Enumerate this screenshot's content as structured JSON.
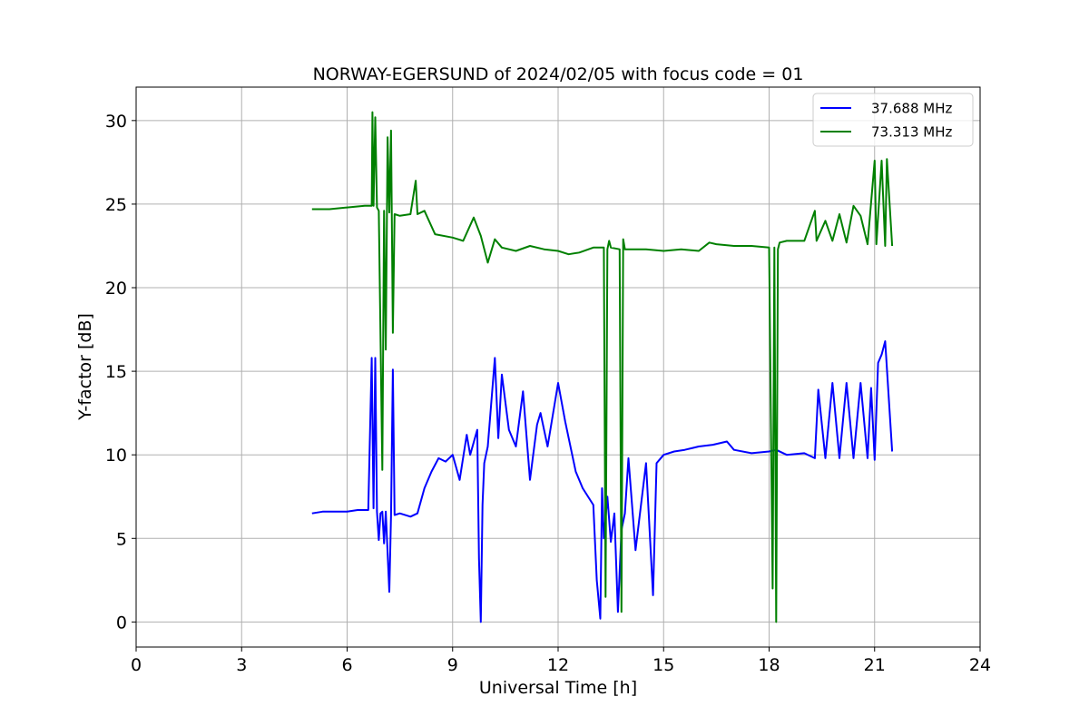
{
  "chart_data": {
    "type": "line",
    "title": "NORWAY-EGERSUND of 2024/02/05 with focus code = 01",
    "xlabel": "Universal Time [h]",
    "ylabel": "Y-factor [dB]",
    "xlim": [
      0,
      24
    ],
    "ylim": [
      -1.5,
      32
    ],
    "xticks": [
      0,
      3,
      6,
      9,
      12,
      15,
      18,
      21,
      24
    ],
    "yticks": [
      0,
      5,
      10,
      15,
      20,
      25,
      30
    ],
    "grid": true,
    "legend_position": "top-right",
    "series": [
      {
        "name": "37.688 MHz",
        "color": "#0000ff",
        "x": [
          5.0,
          5.3,
          5.6,
          6.0,
          6.3,
          6.6,
          6.7,
          6.75,
          6.8,
          6.85,
          6.9,
          6.95,
          7.0,
          7.05,
          7.1,
          7.2,
          7.25,
          7.3,
          7.35,
          7.5,
          7.8,
          8.0,
          8.2,
          8.4,
          8.6,
          8.8,
          9.0,
          9.2,
          9.4,
          9.5,
          9.7,
          9.75,
          9.8,
          9.85,
          9.9,
          10.0,
          10.2,
          10.3,
          10.4,
          10.6,
          10.8,
          11.0,
          11.2,
          11.4,
          11.5,
          11.7,
          12.0,
          12.2,
          12.5,
          12.7,
          13.0,
          13.1,
          13.2,
          13.25,
          13.3,
          13.4,
          13.5,
          13.6,
          13.7,
          13.8,
          13.9,
          14.0,
          14.2,
          14.5,
          14.7,
          14.8,
          15.0,
          15.3,
          15.6,
          16.0,
          16.4,
          16.8,
          17.0,
          17.5,
          18.0,
          18.2,
          18.5,
          19.0,
          19.3,
          19.4,
          19.6,
          19.8,
          20.0,
          20.2,
          20.4,
          20.6,
          20.8,
          20.9,
          21.0,
          21.1,
          21.2,
          21.3,
          21.5
        ],
        "values": [
          6.5,
          6.6,
          6.6,
          6.6,
          6.7,
          6.7,
          15.8,
          6.8,
          15.8,
          6.6,
          4.9,
          6.5,
          6.6,
          4.7,
          6.6,
          1.8,
          6.4,
          15.1,
          6.4,
          6.5,
          6.3,
          6.5,
          8.0,
          9.0,
          9.8,
          9.6,
          10.0,
          8.5,
          11.2,
          10.0,
          11.5,
          3.8,
          0.0,
          7.0,
          9.5,
          10.5,
          15.8,
          11.0,
          14.8,
          11.5,
          10.5,
          13.8,
          8.5,
          11.8,
          12.5,
          10.5,
          14.3,
          12.0,
          9.0,
          8.0,
          7.0,
          2.5,
          0.2,
          8.0,
          5.0,
          7.5,
          4.8,
          6.5,
          0.6,
          5.5,
          6.5,
          9.8,
          4.3,
          9.5,
          1.6,
          9.5,
          10.0,
          10.2,
          10.3,
          10.5,
          10.6,
          10.8,
          10.3,
          10.1,
          10.2,
          10.3,
          10.0,
          10.1,
          9.8,
          13.9,
          9.8,
          14.3,
          9.8,
          14.3,
          9.8,
          14.3,
          9.8,
          14.0,
          9.7,
          15.5,
          16.0,
          16.8,
          10.2
        ]
      },
      {
        "name": "73.313 MHz",
        "color": "#008000",
        "x": [
          5.0,
          5.5,
          6.0,
          6.5,
          6.7,
          6.72,
          6.75,
          6.8,
          6.85,
          6.9,
          7.0,
          7.05,
          7.1,
          7.15,
          7.2,
          7.25,
          7.3,
          7.35,
          7.5,
          7.8,
          7.95,
          8.0,
          8.2,
          8.5,
          9.0,
          9.3,
          9.6,
          9.8,
          10.0,
          10.2,
          10.4,
          10.8,
          11.2,
          11.6,
          12.0,
          12.3,
          12.6,
          13.0,
          13.3,
          13.35,
          13.4,
          13.45,
          13.5,
          13.75,
          13.8,
          13.85,
          13.9,
          14.0,
          14.5,
          15.0,
          15.5,
          16.0,
          16.3,
          16.5,
          17.0,
          17.5,
          18.0,
          18.1,
          18.15,
          18.2,
          18.25,
          18.3,
          18.5,
          19.0,
          19.3,
          19.35,
          19.6,
          19.8,
          20.0,
          20.2,
          20.4,
          20.6,
          20.8,
          21.0,
          21.05,
          21.2,
          21.3,
          21.35,
          21.5
        ],
        "values": [
          24.7,
          24.7,
          24.8,
          24.9,
          24.9,
          30.5,
          24.9,
          30.2,
          24.8,
          24.6,
          9.1,
          24.6,
          16.3,
          29.0,
          24.5,
          29.4,
          17.3,
          24.4,
          24.3,
          24.4,
          26.4,
          24.4,
          24.6,
          23.2,
          23.0,
          22.8,
          24.2,
          23.1,
          21.5,
          22.9,
          22.4,
          22.2,
          22.5,
          22.3,
          22.2,
          22.0,
          22.1,
          22.4,
          22.4,
          1.5,
          22.3,
          22.8,
          22.4,
          22.3,
          0.6,
          22.9,
          22.3,
          22.3,
          22.3,
          22.2,
          22.3,
          22.2,
          22.7,
          22.6,
          22.5,
          22.5,
          22.4,
          2.0,
          22.4,
          0.0,
          22.3,
          22.7,
          22.8,
          22.8,
          24.6,
          22.8,
          24.0,
          22.8,
          24.4,
          22.7,
          24.9,
          24.3,
          22.6,
          27.6,
          22.6,
          27.6,
          22.5,
          27.7,
          22.5
        ]
      }
    ]
  }
}
